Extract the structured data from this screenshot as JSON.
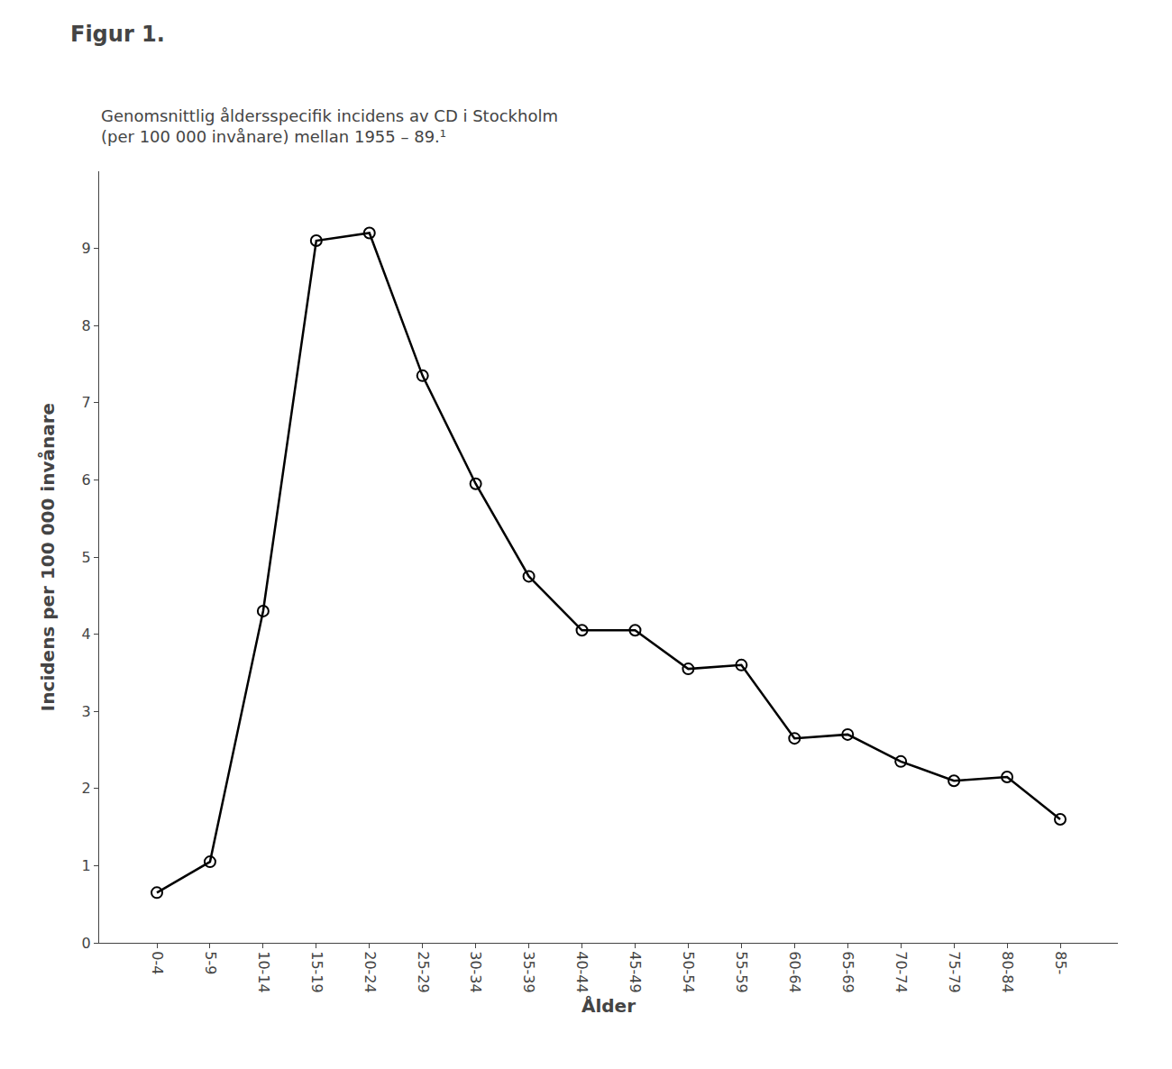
{
  "chart_data": {
    "type": "line",
    "title": "Figur 1.",
    "subtitle": "Genomsnittlig åldersspecifik incidens av CD i Stockholm\n(per 100 000 invånare) mellan 1955 – 89.¹",
    "y_label": "Incidens per 100 000 invånare",
    "x_label": "Ålder",
    "categories": [
      "0-4",
      "5-9",
      "10-14",
      "15-19",
      "20-24",
      "25-29",
      "30-34",
      "35-39",
      "40-44",
      "45-49",
      "50-54",
      "55-59",
      "60-64",
      "65-69",
      "70-74",
      "75-79",
      "80-84",
      "85-"
    ],
    "values": [
      0.65,
      1.05,
      4.3,
      9.1,
      9.2,
      7.35,
      5.95,
      4.75,
      4.05,
      4.05,
      3.55,
      3.6,
      2.65,
      2.7,
      2.35,
      2.1,
      2.15,
      1.6
    ],
    "color": "#000000",
    "marker": "circle-open",
    "ylim": [
      0,
      10
    ],
    "yticks": [
      0,
      1,
      2,
      3,
      4,
      5,
      6,
      7,
      8,
      9
    ],
    "grid": false
  }
}
